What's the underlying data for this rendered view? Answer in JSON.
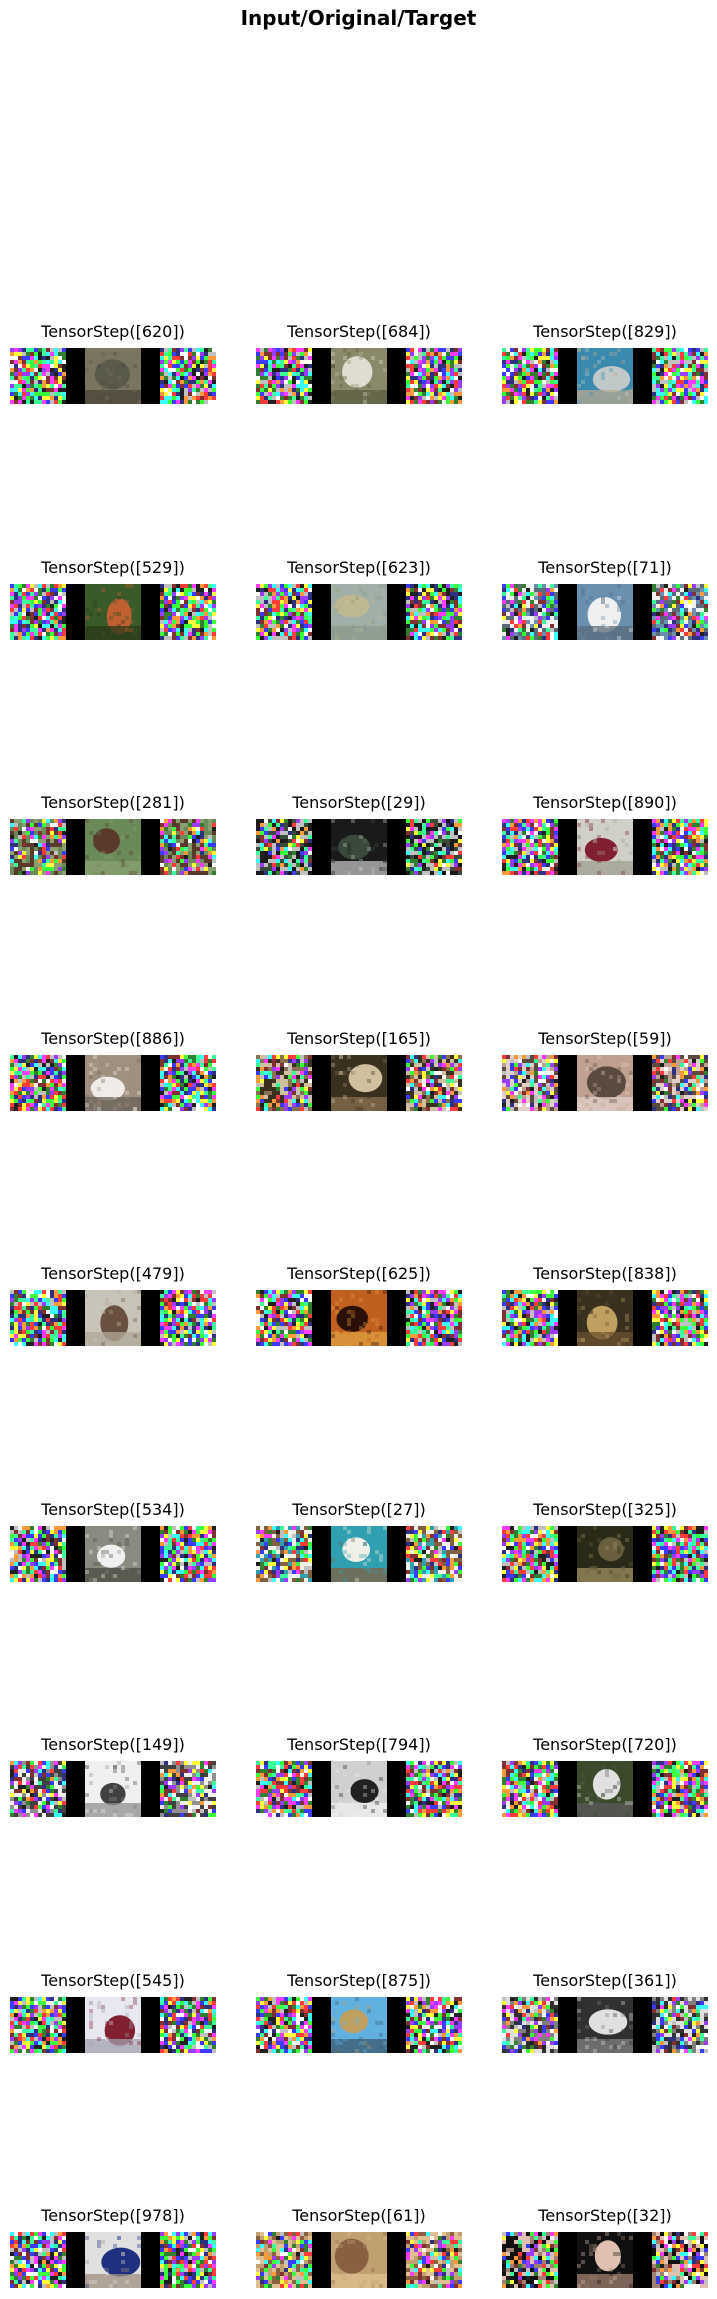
{
  "figure_title": "Input/Original/Target",
  "grid": {
    "rows": 9,
    "cols": 3
  },
  "panels": [
    {
      "label": "TensorStep([620])",
      "input": "noise",
      "original": {
        "subject": "seal on ground",
        "colors": [
          "#7a7460",
          "#5a5a4a",
          "#4a4438"
        ]
      },
      "target": "noise"
    },
    {
      "label": "TensorStep([684])",
      "input": "noise",
      "original": {
        "subject": "white dog",
        "colors": [
          "#8a8a6a",
          "#e0ddd0",
          "#5a5a40"
        ]
      },
      "target": "noise"
    },
    {
      "label": "TensorStep([829])",
      "input": "noise",
      "original": {
        "subject": "ship at sea",
        "colors": [
          "#3a8ab0",
          "#c0c8c8",
          "#b8a890"
        ]
      },
      "target": "noise"
    },
    {
      "label": "TensorStep([529])",
      "input": "noise",
      "original": {
        "subject": "animal in foliage",
        "colors": [
          "#3a5a2a",
          "#c06030",
          "#2a3a1a"
        ]
      },
      "target": "noise"
    },
    {
      "label": "TensorStep([623])",
      "input": "noise",
      "original": {
        "subject": "airplane",
        "colors": [
          "#a0b0a8",
          "#c0b890",
          "#8a9888"
        ]
      },
      "target": "noise"
    },
    {
      "label": "TensorStep([71])",
      "input": "noisy-image",
      "original": {
        "subject": "ship",
        "colors": [
          "#6a90b0",
          "#f0f0f0",
          "#5a6a7a"
        ]
      },
      "target": "noisy-image"
    },
    {
      "label": "TensorStep([281])",
      "input": "noisy-image",
      "original": {
        "subject": "horse",
        "colors": [
          "#6a8a5a",
          "#5a3a2a",
          "#8aa070"
        ]
      },
      "target": "noisy-image"
    },
    {
      "label": "TensorStep([29])",
      "input": "noisy-image",
      "original": {
        "subject": "dark scene",
        "colors": [
          "#1a1a1a",
          "#3a4a3a",
          "#c0c0c0"
        ]
      },
      "target": "noisy-image"
    },
    {
      "label": "TensorStep([890])",
      "input": "noise",
      "original": {
        "subject": "truck",
        "colors": [
          "#d0d0c8",
          "#802030",
          "#a0a090"
        ]
      },
      "target": "noise"
    },
    {
      "label": "TensorStep([886])",
      "input": "noise",
      "original": {
        "subject": "cat",
        "colors": [
          "#a09080",
          "#f0ece8",
          "#6a6058"
        ]
      },
      "target": "noise"
    },
    {
      "label": "TensorStep([165])",
      "input": "noisy-image",
      "original": {
        "subject": "cat",
        "colors": [
          "#3a3020",
          "#d0c0a0",
          "#8a7050"
        ]
      },
      "target": "noisy-image"
    },
    {
      "label": "TensorStep([59])",
      "input": "noisy-image",
      "original": {
        "subject": "vehicle",
        "colors": [
          "#c0a090",
          "#5a4a40",
          "#e0d0c8"
        ]
      },
      "target": "noisy-image"
    },
    {
      "label": "TensorStep([479])",
      "input": "noise",
      "original": {
        "subject": "bird",
        "colors": [
          "#c8c4b8",
          "#6a5040",
          "#b0a898"
        ]
      },
      "target": "noise"
    },
    {
      "label": "TensorStep([625])",
      "input": "noise",
      "original": {
        "subject": "sunset",
        "colors": [
          "#c06020",
          "#2a1008",
          "#e0a040"
        ]
      },
      "target": "noise"
    },
    {
      "label": "TensorStep([838])",
      "input": "noise",
      "original": {
        "subject": "frog",
        "colors": [
          "#3a3020",
          "#c0a060",
          "#6a5030"
        ]
      },
      "target": "noise"
    },
    {
      "label": "TensorStep([534])",
      "input": "noise",
      "original": {
        "subject": "ship",
        "colors": [
          "#8a8a80",
          "#f0f0f0",
          "#4a4a40"
        ]
      },
      "target": "noise"
    },
    {
      "label": "TensorStep([27])",
      "input": "noisy-image",
      "original": {
        "subject": "white horse",
        "colors": [
          "#30a0b0",
          "#f0f0e8",
          "#806040"
        ]
      },
      "target": "noisy-image"
    },
    {
      "label": "TensorStep([325])",
      "input": "noise",
      "original": {
        "subject": "frog",
        "colors": [
          "#2a2a18",
          "#6a6040",
          "#a09060"
        ]
      },
      "target": "noise"
    },
    {
      "label": "TensorStep([149])",
      "input": "noisy-image",
      "original": {
        "subject": "car",
        "colors": [
          "#f0f0f0",
          "#404040",
          "#909090"
        ]
      },
      "target": "noisy-image"
    },
    {
      "label": "TensorStep([794])",
      "input": "noise",
      "original": {
        "subject": "dog",
        "colors": [
          "#d0d0d0",
          "#202020",
          "#f0f0f0"
        ]
      },
      "target": "noise"
    },
    {
      "label": "TensorStep([720])",
      "input": "noise",
      "original": {
        "subject": "truck",
        "colors": [
          "#3a4a2a",
          "#e0e0e0",
          "#5a5a5a"
        ]
      },
      "target": "noise"
    },
    {
      "label": "TensorStep([545])",
      "input": "noise",
      "original": {
        "subject": "airplane",
        "colors": [
          "#e8e8f0",
          "#802030",
          "#a0a0b0"
        ]
      },
      "target": "noise"
    },
    {
      "label": "TensorStep([875])",
      "input": "noise",
      "original": {
        "subject": "bird",
        "colors": [
          "#60b0e0",
          "#c0a060",
          "#3a5a70"
        ]
      },
      "target": "noise"
    },
    {
      "label": "TensorStep([361])",
      "input": "noisy-image",
      "original": {
        "subject": "car",
        "colors": [
          "#303030",
          "#e0e0e0",
          "#808080"
        ]
      },
      "target": "noisy-image"
    },
    {
      "label": "TensorStep([978])",
      "input": "noise",
      "original": {
        "subject": "airplane",
        "colors": [
          "#e0e0e0",
          "#203080",
          "#a09080"
        ]
      },
      "target": "noise"
    },
    {
      "label": "TensorStep([61])",
      "input": "noisy-image",
      "original": {
        "subject": "dog",
        "colors": [
          "#c0a070",
          "#8a6040",
          "#e0c090"
        ]
      },
      "target": "noisy-image"
    },
    {
      "label": "TensorStep([32])",
      "input": "noisy-image",
      "original": {
        "subject": "hamster in hand",
        "colors": [
          "#101010",
          "#e0c0b0",
          "#a08070"
        ]
      },
      "target": "noisy-image"
    }
  ]
}
